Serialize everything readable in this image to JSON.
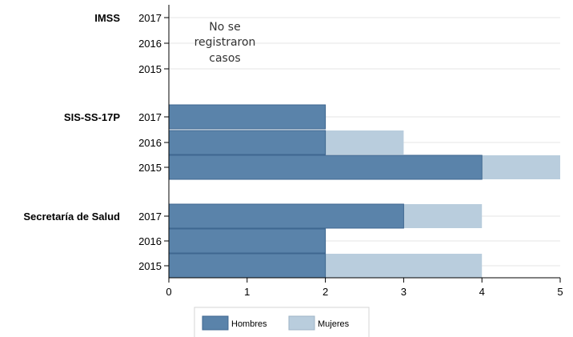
{
  "chart_data": {
    "type": "bar",
    "orientation": "horizontal",
    "stacked": true,
    "groups": [
      {
        "label": "IMSS",
        "years": [
          "2017",
          "2016",
          "2015"
        ],
        "hombres": [
          0,
          0,
          0
        ],
        "mujeres": [
          0,
          0,
          0
        ],
        "note": [
          "No se",
          "registraron",
          "casos"
        ]
      },
      {
        "label": "SIS-SS-17P",
        "years": [
          "2017",
          "2016",
          "2015"
        ],
        "hombres": [
          2,
          2,
          4
        ],
        "mujeres": [
          0,
          1,
          1
        ],
        "note": []
      },
      {
        "label": "Secretaría de Salud",
        "years": [
          "2017",
          "2016",
          "2015"
        ],
        "hombres": [
          3,
          2,
          2
        ],
        "mujeres": [
          1,
          0,
          2
        ],
        "note": []
      }
    ],
    "series": [
      {
        "name": "Hombres",
        "color": "#5a83aa"
      },
      {
        "name": "Mujeres",
        "color": "#b9cddd"
      }
    ],
    "xlim": [
      0,
      5
    ],
    "xticks": [
      "0",
      "1",
      "2",
      "3",
      "4",
      "5"
    ],
    "grid": true,
    "legend_position": "bottom"
  }
}
